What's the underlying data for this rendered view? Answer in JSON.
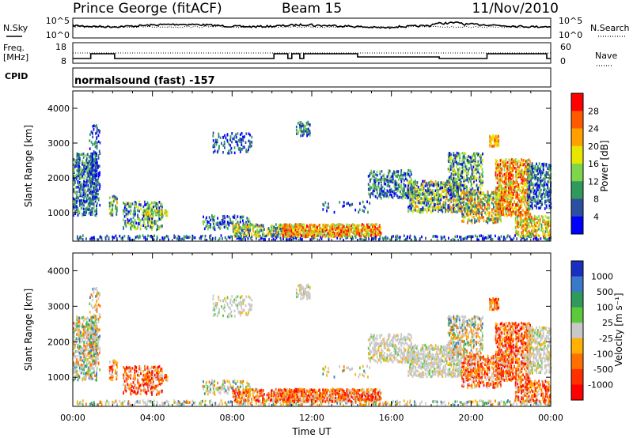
{
  "header": {
    "station": "Prince George (fitACF)",
    "beam": "Beam 15",
    "date": "11/Nov/2010"
  },
  "labels": {
    "nsky": "N.Sky",
    "nsearch": "N.Search",
    "freq_line1": "Freq.",
    "freq_line2": "[MHz]",
    "nave": "Nave",
    "cpid": "CPID",
    "cpid_text": "normalsound (fast) -157",
    "noise_tick_top": "10^5",
    "noise_tick_bottom": "10^0",
    "freq_tick_top": "18",
    "freq_tick_bottom": "8",
    "nave_tick_top": "60",
    "nave_tick_bottom": "0",
    "xlabel": "Time UT"
  },
  "chart_data": [
    {
      "type": "heatmap",
      "panel": "power",
      "ylabel": "Slant Range [km]",
      "colorbar_label": "Power [dB]",
      "colorbar_ticks": [
        "28",
        "24",
        "20",
        "16",
        "12",
        "8",
        "4"
      ],
      "colorbar_colors": [
        "#ff0000",
        "#ff5a00",
        "#ffa000",
        "#e6e600",
        "#7ed44a",
        "#2f9a5c",
        "#2c4fa0",
        "#0000ff"
      ],
      "x_ticks": [
        "00:00",
        "04:00",
        "08:00",
        "12:00",
        "16:00",
        "20:00",
        "00:00"
      ],
      "y_ticks": [
        "1000",
        "2000",
        "3000",
        "4000"
      ],
      "xlim": [
        0,
        24
      ],
      "ylim": [
        180,
        4500
      ]
    },
    {
      "type": "heatmap",
      "panel": "velocity",
      "ylabel": "Slant Range [km]",
      "colorbar_label": "Velocity [m s⁻¹]",
      "colorbar_ticks": [
        "1000",
        "500",
        "100",
        "25",
        "-25",
        "-100",
        "-500",
        "-1000"
      ],
      "colorbar_colors": [
        "#1a2fbf",
        "#3a78c9",
        "#2f9a5c",
        "#5cc83c",
        "#c8c8c8",
        "#ffb000",
        "#ff7000",
        "#ff3000",
        "#ff0000"
      ],
      "x_ticks": [
        "00:00",
        "04:00",
        "08:00",
        "12:00",
        "16:00",
        "20:00",
        "00:00"
      ],
      "y_ticks": [
        "1000",
        "2000",
        "3000",
        "4000"
      ],
      "xlim": [
        0,
        24
      ],
      "ylim": [
        180,
        4500
      ]
    }
  ]
}
